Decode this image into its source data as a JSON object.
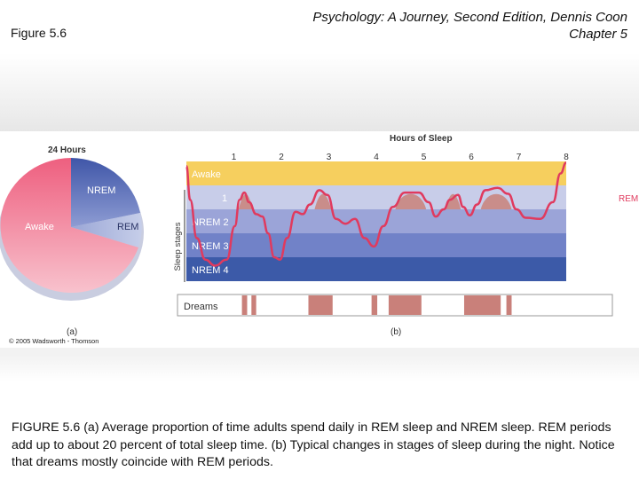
{
  "header": {
    "figure_label": "Figure 5.6",
    "book_title": "Psychology: A Journey, Second Edition, Dennis Coon",
    "chapter": "Chapter 5"
  },
  "pie": {
    "title": "24 Hours",
    "slices": [
      {
        "label": "NREM",
        "percent": 26,
        "color": "#5f74bd"
      },
      {
        "label": "REM",
        "percent": 7,
        "color": "#aebade"
      },
      {
        "label": "Awake",
        "percent": 67,
        "color": "#f07f97"
      }
    ],
    "panel_label": "(a)",
    "copyright": "© 2005 Wadsworth - Thomson"
  },
  "hypnogram": {
    "x_title": "Hours of Sleep",
    "hours": [
      "1",
      "2",
      "3",
      "4",
      "5",
      "6",
      "7",
      "8"
    ],
    "y_title": "Sleep stages",
    "stages": [
      {
        "label": "Awake",
        "color": "#f6cf5e"
      },
      {
        "label": "1",
        "color": "#c8cde9"
      },
      {
        "label": "NREM 2",
        "color": "#9ba4d8"
      },
      {
        "label": "NREM 3",
        "color": "#7182c8"
      },
      {
        "label": "NREM 4",
        "color": "#3c5aa8"
      }
    ],
    "rem_label": "REM",
    "dreams_label": "Dreams",
    "dream_periods": [
      [
        1.17,
        1.28
      ],
      [
        1.37,
        1.47
      ],
      [
        2.57,
        3.08
      ],
      [
        3.9,
        4.02
      ],
      [
        4.26,
        4.95
      ],
      [
        5.85,
        6.62
      ],
      [
        6.74,
        6.85
      ]
    ],
    "panel_label": "(b)"
  },
  "caption": {
    "figure_ref": "FIGURE 5.6",
    "text": " (a) Average proportion of time adults spend daily in REM sleep and NREM sleep. REM periods add up to about 20 percent of total sleep  time. (b) Typical changes in stages of sleep during the night. Notice that dreams mostly coincide with REM periods."
  }
}
